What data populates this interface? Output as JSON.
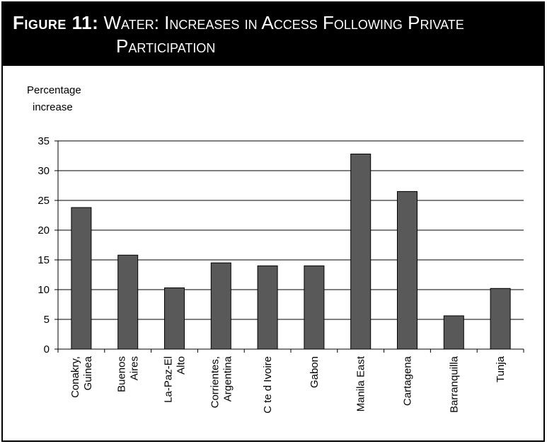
{
  "header": {
    "label": "Figure 11:",
    "title_line1": "Water: Increases in Access Following Private",
    "title_line2": "Participation"
  },
  "chart_data": {
    "type": "bar",
    "title": "Water: Increases in Access Following Private Participation",
    "ylabel": "Percentage increase",
    "xlabel": "",
    "ylim": [
      0,
      35
    ],
    "yticks": [
      0,
      5,
      10,
      15,
      20,
      25,
      30,
      35
    ],
    "grid": true,
    "legend": "none",
    "bar_color": "#595959",
    "categories": [
      "Conakry, Guinea",
      "Buenos Aires",
      "La-Paz-El Alto",
      "Corrientes, Argentina",
      "C te d Ivoire",
      "Gabon",
      "Manila East",
      "Cartagena",
      "Barranquilla",
      "Tunja"
    ],
    "category_lines": [
      [
        "Conakry,",
        "Guinea"
      ],
      [
        "Buenos",
        "Aires"
      ],
      [
        "La-Paz-El",
        "Alto"
      ],
      [
        "Corrientes,",
        "Argentina"
      ],
      [
        "C te d Ivoire"
      ],
      [
        "Gabon"
      ],
      [
        "Manila East"
      ],
      [
        "Cartagena"
      ],
      [
        "Barranquilla"
      ],
      [
        "Tunja"
      ]
    ],
    "values": [
      23.8,
      15.8,
      10.3,
      14.5,
      14,
      14,
      32.8,
      26.5,
      5.6,
      10.2
    ]
  }
}
